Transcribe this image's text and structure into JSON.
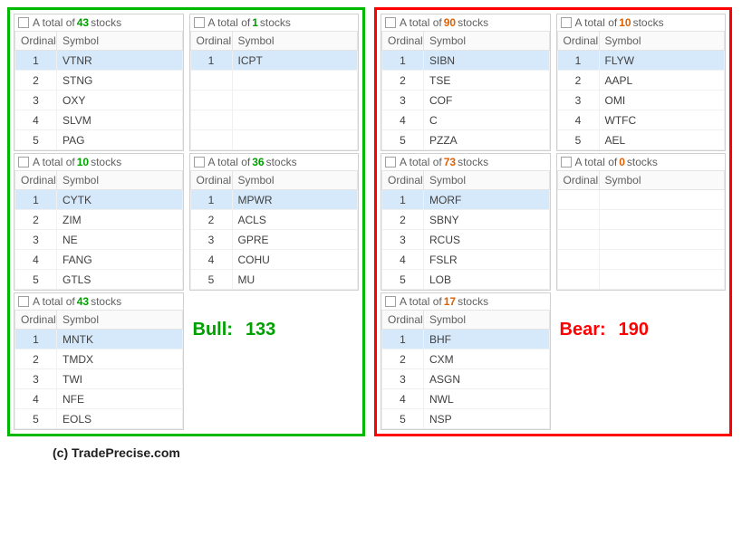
{
  "labels": {
    "ordinal": "Ordinal",
    "symbol": "Symbol",
    "total_prefix": "A total of",
    "total_suffix": "stocks",
    "bull_label": "Bull:",
    "bear_label": "Bear:",
    "footer": "(c) TradePrecise.com"
  },
  "bull": {
    "total": 133,
    "color": "#00b800",
    "blocks_col1": [
      {
        "count": 43,
        "rows": [
          [
            1,
            "VTNR"
          ],
          [
            2,
            "STNG"
          ],
          [
            3,
            "OXY"
          ],
          [
            4,
            "SLVM"
          ],
          [
            5,
            "PAG"
          ]
        ]
      },
      {
        "count": 10,
        "rows": [
          [
            1,
            "CYTK"
          ],
          [
            2,
            "ZIM"
          ],
          [
            3,
            "NE"
          ],
          [
            4,
            "FANG"
          ],
          [
            5,
            "GTLS"
          ]
        ]
      },
      {
        "count": 43,
        "rows": [
          [
            1,
            "MNTK"
          ],
          [
            2,
            "TMDX"
          ],
          [
            3,
            "TWI"
          ],
          [
            4,
            "NFE"
          ],
          [
            5,
            "EOLS"
          ]
        ]
      }
    ],
    "blocks_col2": [
      {
        "count": 1,
        "rows": [
          [
            1,
            "ICPT"
          ]
        ],
        "empty_rows": 4
      },
      {
        "count": 36,
        "rows": [
          [
            1,
            "MPWR"
          ],
          [
            2,
            "ACLS"
          ],
          [
            3,
            "GPRE"
          ],
          [
            4,
            "COHU"
          ],
          [
            5,
            "MU"
          ]
        ]
      }
    ]
  },
  "bear": {
    "total": 190,
    "color": "#ff0000",
    "blocks_col1": [
      {
        "count": 90,
        "rows": [
          [
            1,
            "SIBN"
          ],
          [
            2,
            "TSE"
          ],
          [
            3,
            "COF"
          ],
          [
            4,
            "C"
          ],
          [
            5,
            "PZZA"
          ]
        ]
      },
      {
        "count": 73,
        "rows": [
          [
            1,
            "MORF"
          ],
          [
            2,
            "SBNY"
          ],
          [
            3,
            "RCUS"
          ],
          [
            4,
            "FSLR"
          ],
          [
            5,
            "LOB"
          ]
        ]
      },
      {
        "count": 17,
        "rows": [
          [
            1,
            "BHF"
          ],
          [
            2,
            "CXM"
          ],
          [
            3,
            "ASGN"
          ],
          [
            4,
            "NWL"
          ],
          [
            5,
            "NSP"
          ]
        ]
      }
    ],
    "blocks_col2": [
      {
        "count": 10,
        "rows": [
          [
            1,
            "FLYW"
          ],
          [
            2,
            "AAPL"
          ],
          [
            3,
            "OMI"
          ],
          [
            4,
            "WTFC"
          ],
          [
            5,
            "AEL"
          ]
        ]
      },
      {
        "count": 0,
        "rows": [],
        "empty_rows": 5
      }
    ]
  }
}
